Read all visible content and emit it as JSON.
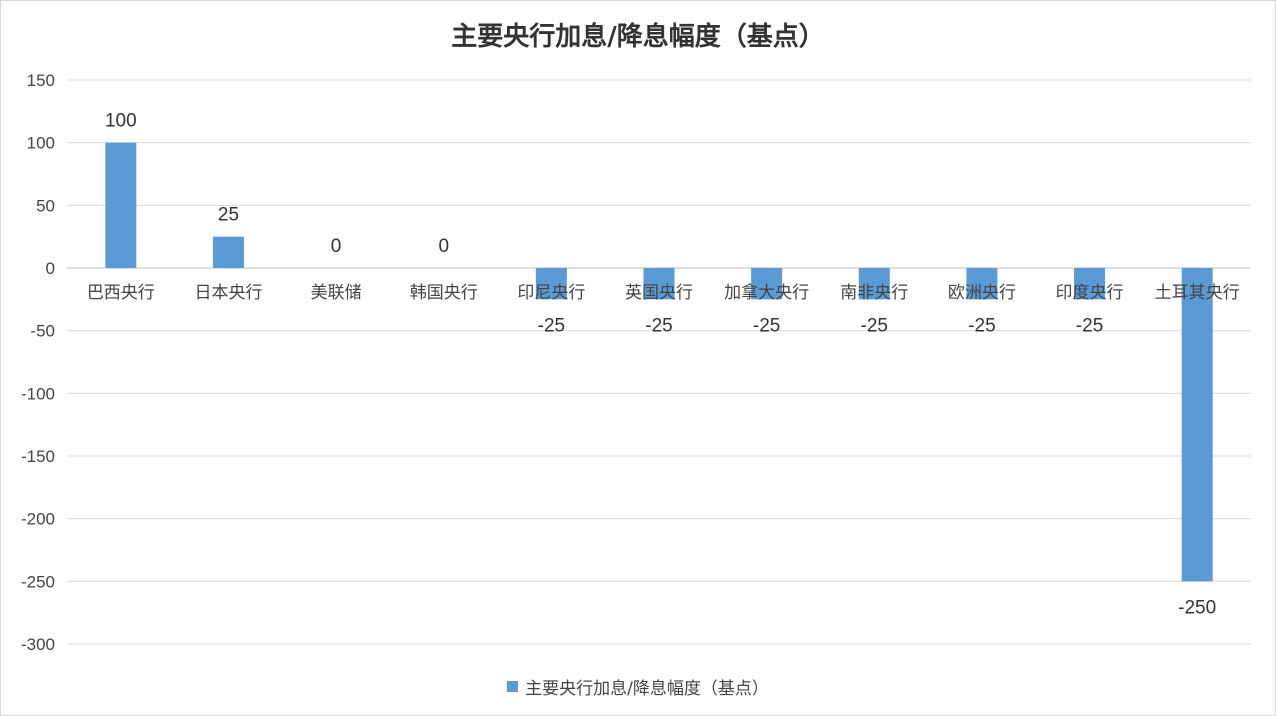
{
  "chart_data": {
    "type": "bar",
    "title": "主要央行加息/降息幅度（基点）",
    "categories": [
      "巴西央行",
      "日本央行",
      "美联储",
      "韩国央行",
      "印尼央行",
      "英国央行",
      "加拿大央行",
      "南非央行",
      "欧洲央行",
      "印度央行",
      "土耳其央行"
    ],
    "series": [
      {
        "name": "主要央行加息/降息幅度（基点）",
        "values": [
          100,
          25,
          0,
          0,
          -25,
          -25,
          -25,
          -25,
          -25,
          -25,
          -250
        ],
        "color": "#5b9bd5"
      }
    ],
    "yticks": [
      "150",
      "100",
      "50",
      "0",
      "-50",
      "-100",
      "-150",
      "-200",
      "-250",
      "-300"
    ],
    "ylim": [
      -300,
      150
    ],
    "ytick_step": 50,
    "grid": true,
    "legend_position": "bottom",
    "data_labels": true
  }
}
